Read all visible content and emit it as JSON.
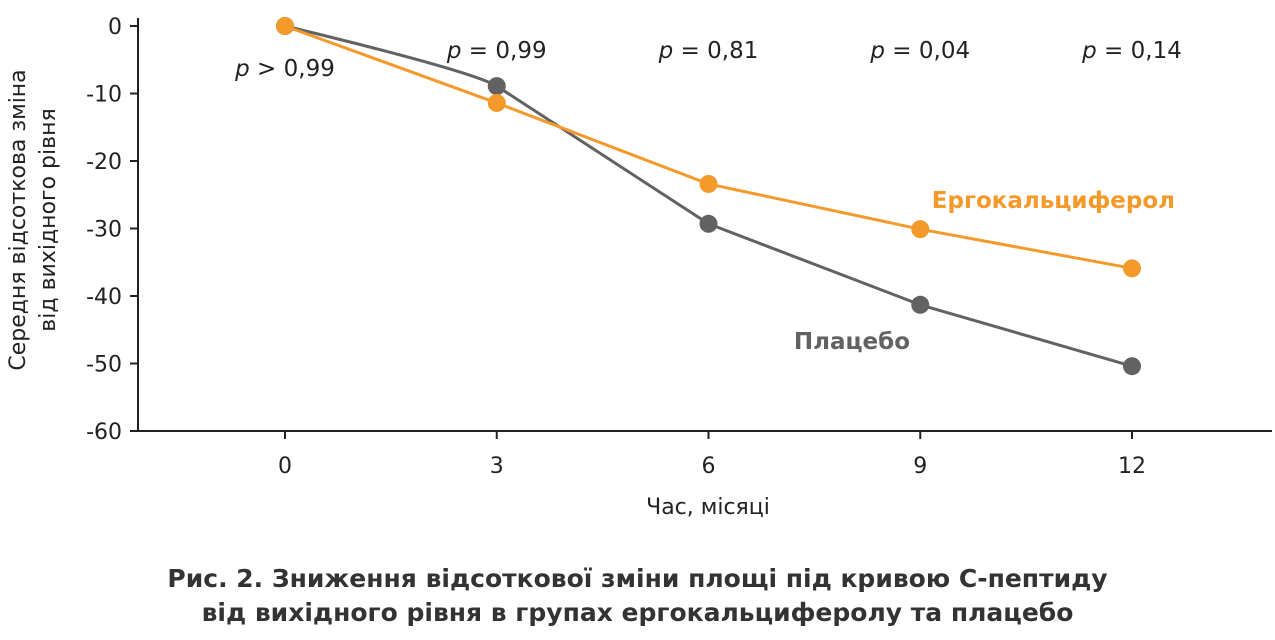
{
  "chart_data": {
    "type": "line",
    "x": [
      0,
      3,
      6,
      9,
      12
    ],
    "xlabel": "Час, місяці",
    "ylabel": [
      "Середня відсоткова зміна",
      "від вихідного рівня"
    ],
    "ylim": [
      -60,
      0
    ],
    "yticks": [
      0,
      -10,
      -20,
      -30,
      -40,
      -50,
      -60
    ],
    "xticks": [
      0,
      3,
      6,
      9,
      12
    ],
    "series": [
      {
        "name": "Ергокальциферол",
        "color": "#f39a2b",
        "values": [
          0,
          -11.4,
          -23.4,
          -30.1,
          -35.9
        ]
      },
      {
        "name": "Плацебо",
        "color": "#626262",
        "values": [
          0,
          -8.9,
          -29.3,
          -41.3,
          -50.4
        ]
      }
    ],
    "annotations": [
      {
        "x": 0,
        "p": "p",
        "text": " > 0,99"
      },
      {
        "x": 3,
        "p": "p",
        "text": " = 0,99"
      },
      {
        "x": 6,
        "p": "p",
        "text": " = 0,81"
      },
      {
        "x": 9,
        "p": "p",
        "text": " = 0,04"
      },
      {
        "x": 12,
        "p": "p",
        "text": " = 0,14"
      }
    ],
    "grid": false
  },
  "caption": [
    "Рис. 2. Зниження відсоткової зміни площі під кривою С-пептиду",
    "від вихідного рівня в групах ергокальциферолу та плацебо"
  ]
}
